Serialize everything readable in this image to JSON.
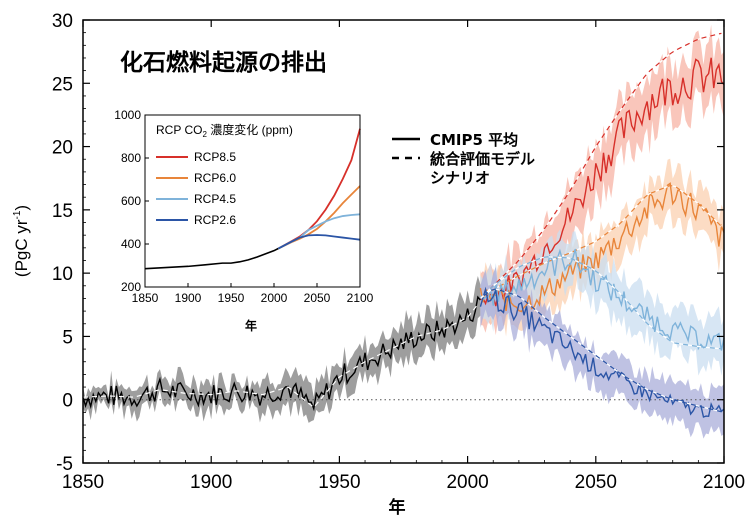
{
  "chart_data": [
    {
      "type": "line",
      "title": "化石燃料起源の排出",
      "xlabel": "年",
      "ylabel": "(PgC yr⁻¹)",
      "ylabel_main": "(PgC yr",
      "ylabel_sup": "-1",
      "ylabel_close": ")",
      "xlim": [
        1850,
        2100
      ],
      "ylim": [
        -5,
        30
      ],
      "x_ticks": [
        1850,
        1900,
        1950,
        2000,
        2050,
        2100
      ],
      "y_ticks": [
        -5,
        0,
        5,
        10,
        15,
        20,
        25,
        30
      ],
      "legend": {
        "placement": "center",
        "solid_label": "CMIP5 平均",
        "dashed_label_1": "統合評価モデル",
        "dashed_label_2": "シナリオ"
      },
      "colors": {
        "historical": "#000000",
        "historical_band": "#999999",
        "RCP8.5": "#d7302a",
        "RCP8.5_band": "#f7b3a4",
        "RCP6.0": "#e8853a",
        "RCP6.0_band": "#fbd0b0",
        "RCP4.5": "#7fb3da",
        "RCP4.5_band": "#c9def0",
        "RCP2.6": "#2b55a6",
        "RCP2.6_band": "#a9aed9"
      },
      "series": [
        {
          "name": "CMIP5 平均 (historical)",
          "x": [
            1850,
            1860,
            1870,
            1880,
            1890,
            1900,
            1910,
            1920,
            1930,
            1940,
            1950,
            1960,
            1970,
            1980,
            1990,
            2000,
            2005
          ],
          "values": [
            0.2,
            0.3,
            0.2,
            0.8,
            0.5,
            0.4,
            0.7,
            0.4,
            1.0,
            -0.6,
            1.8,
            3.0,
            4.0,
            5.0,
            5.5,
            6.5,
            7.8
          ],
          "band_halfwidth": 1.3
        },
        {
          "name": "RCP8.5",
          "x": [
            2005,
            2010,
            2020,
            2030,
            2040,
            2050,
            2060,
            2070,
            2080,
            2090,
            2100
          ],
          "values": [
            8.0,
            8.2,
            9.5,
            12.0,
            14.5,
            18.0,
            21.0,
            23.5,
            24.8,
            25.5,
            25.5
          ],
          "scenario": [
            8.0,
            9.0,
            11.0,
            13.5,
            16.5,
            20.0,
            23.0,
            25.8,
            27.5,
            28.5,
            29.0
          ],
          "band_halfwidth": 2.3
        },
        {
          "name": "RCP6.0",
          "x": [
            2005,
            2010,
            2020,
            2030,
            2040,
            2050,
            2060,
            2070,
            2080,
            2090,
            2100
          ],
          "values": [
            8.0,
            8.2,
            7.5,
            8.5,
            10.0,
            11.0,
            13.0,
            15.0,
            16.5,
            15.0,
            12.5
          ],
          "scenario": [
            8.0,
            8.7,
            9.8,
            10.8,
            11.6,
            12.5,
            14.0,
            16.2,
            17.0,
            15.5,
            13.5
          ],
          "band_halfwidth": 1.8
        },
        {
          "name": "RCP4.5",
          "x": [
            2005,
            2010,
            2020,
            2030,
            2040,
            2050,
            2060,
            2070,
            2080,
            2090,
            2100
          ],
          "values": [
            8.0,
            8.3,
            9.0,
            10.3,
            11.3,
            9.5,
            8.0,
            6.5,
            5.5,
            4.8,
            4.5
          ],
          "scenario": [
            8.0,
            9.0,
            10.5,
            11.3,
            11.2,
            10.2,
            8.3,
            6.0,
            4.5,
            4.2,
            4.0
          ],
          "band_halfwidth": 1.8
        },
        {
          "name": "RCP2.6",
          "x": [
            2005,
            2010,
            2020,
            2030,
            2040,
            2050,
            2060,
            2070,
            2080,
            2090,
            2100
          ],
          "values": [
            8.0,
            8.0,
            7.0,
            5.5,
            4.0,
            2.5,
            1.5,
            0.5,
            -0.3,
            -0.8,
            -1.0
          ],
          "scenario": [
            8.0,
            8.8,
            8.2,
            6.5,
            5.0,
            3.5,
            2.0,
            0.8,
            0.0,
            -0.5,
            -1.0
          ],
          "band_halfwidth": 1.6
        }
      ]
    },
    {
      "type": "line",
      "title_prefix": "RCP CO",
      "title_sub": "2",
      "title_suffix": " 濃度変化 (ppm)",
      "xlabel": "年",
      "ylabel": "",
      "xlim": [
        1850,
        2100
      ],
      "ylim": [
        200,
        1000
      ],
      "x_ticks": [
        1850,
        1900,
        1950,
        2000,
        2050,
        2100
      ],
      "y_ticks": [
        200,
        400,
        600,
        800,
        1000
      ],
      "legend": {
        "placement": "top-left"
      },
      "historical": {
        "x": [
          1850,
          1900,
          1920,
          1940,
          1950,
          1960,
          1970,
          1980,
          1990,
          2000,
          2005
        ],
        "values": [
          285,
          296,
          303,
          311,
          311,
          317,
          326,
          339,
          354,
          369,
          379
        ]
      },
      "series": [
        {
          "name": "RCP8.5",
          "x": [
            2005,
            2020,
            2030,
            2040,
            2050,
            2060,
            2070,
            2080,
            2090,
            2100
          ],
          "values": [
            379,
            412,
            435,
            465,
            506,
            560,
            625,
            703,
            790,
            936
          ]
        },
        {
          "name": "RCP6.0",
          "x": [
            2005,
            2020,
            2030,
            2040,
            2050,
            2060,
            2070,
            2080,
            2090,
            2100
          ],
          "values": [
            379,
            408,
            425,
            445,
            470,
            505,
            545,
            590,
            630,
            670
          ]
        },
        {
          "name": "RCP4.5",
          "x": [
            2005,
            2020,
            2030,
            2040,
            2050,
            2060,
            2070,
            2080,
            2090,
            2100
          ],
          "values": [
            379,
            410,
            430,
            465,
            485,
            505,
            520,
            530,
            535,
            538
          ]
        },
        {
          "name": "RCP2.6",
          "x": [
            2005,
            2020,
            2030,
            2040,
            2050,
            2060,
            2070,
            2080,
            2090,
            2100
          ],
          "values": [
            379,
            410,
            430,
            440,
            442,
            440,
            435,
            430,
            425,
            420
          ]
        }
      ]
    }
  ]
}
